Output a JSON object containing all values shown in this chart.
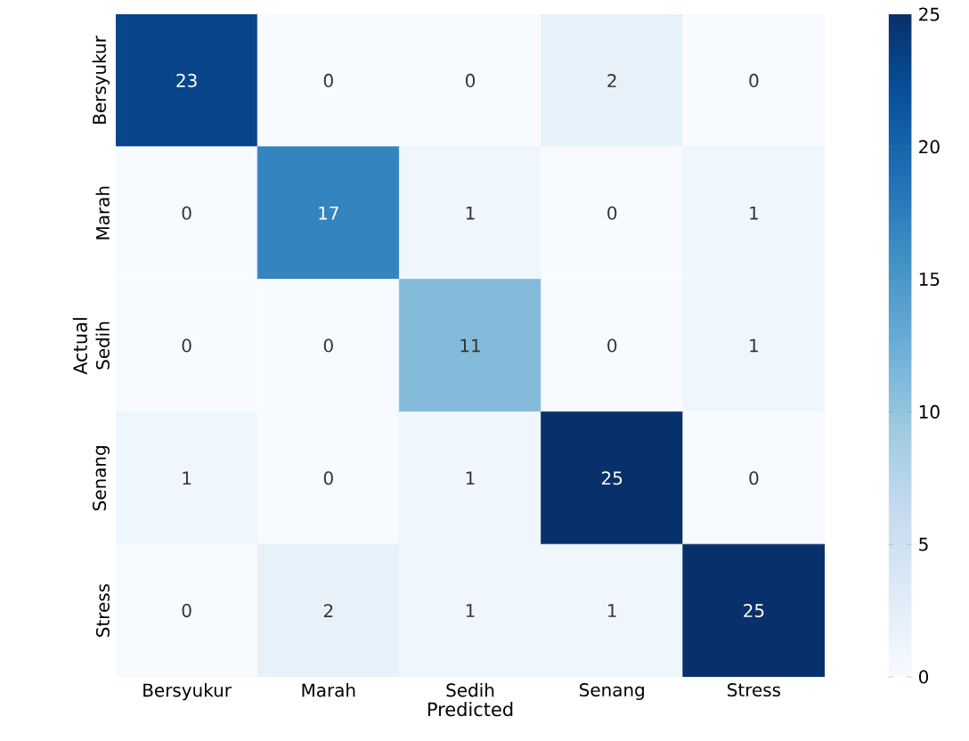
{
  "chart_data": {
    "type": "heatmap",
    "xlabel": "Predicted",
    "ylabel": "Actual",
    "categories": [
      "Bersyukur",
      "Marah",
      "Sedih",
      "Senang",
      "Stress"
    ],
    "y_categories": [
      "Bersyukur",
      "Marah",
      "Sedih",
      "Senang",
      "Stress"
    ],
    "cells": [
      [
        23,
        0,
        0,
        2,
        0
      ],
      [
        0,
        17,
        1,
        0,
        1
      ],
      [
        0,
        0,
        11,
        0,
        1
      ],
      [
        1,
        0,
        1,
        25,
        0
      ],
      [
        0,
        2,
        1,
        1,
        25
      ]
    ],
    "clim": [
      0,
      25
    ],
    "cticks": [
      0,
      5,
      10,
      15,
      20,
      25
    ],
    "data_labels": true
  }
}
